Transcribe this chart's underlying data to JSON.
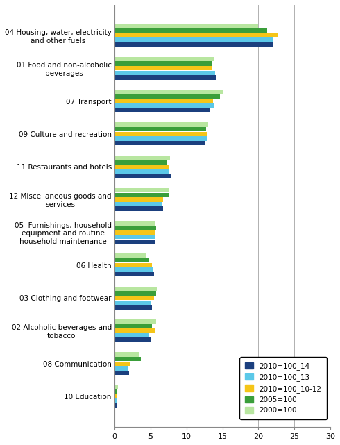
{
  "categories": [
    "04 Housing, water, electricity\nand other fuels",
    "01 Food and non-alcoholic\nbeverages",
    "07 Transport",
    "09 Culture and recreation",
    "11 Restaurants and hotels",
    "12 Miscellaneous goods and\nservices",
    "05  Furnishings, household\nequipment and routine\nhousehold maintenance",
    "06 Health",
    "03 Clothing and footwear",
    "02 Alcoholic beverages and\ntobacco",
    "08 Communication",
    "10 Education"
  ],
  "series": {
    "2010=100_14": [
      22.0,
      14.2,
      13.3,
      12.5,
      7.8,
      6.8,
      5.7,
      5.5,
      5.2,
      5.0,
      2.0,
      0.3
    ],
    "2010=100_13": [
      22.0,
      14.0,
      13.8,
      12.8,
      7.6,
      6.6,
      5.6,
      5.3,
      5.1,
      4.8,
      1.8,
      0.3
    ],
    "2010=100_10-12": [
      22.8,
      13.6,
      13.7,
      12.8,
      7.5,
      6.8,
      5.6,
      5.2,
      5.5,
      5.7,
      2.1,
      0.3
    ],
    "2005=100": [
      21.2,
      13.5,
      14.7,
      12.7,
      7.3,
      7.5,
      5.8,
      4.8,
      5.8,
      5.2,
      3.7,
      0.4
    ],
    "2000=100": [
      20.0,
      13.9,
      15.0,
      13.0,
      7.7,
      7.6,
      5.7,
      4.4,
      5.9,
      5.8,
      3.5,
      0.5
    ]
  },
  "colors": {
    "2010=100_14": "#1b3f7e",
    "2010=100_13": "#5bc8e8",
    "2010=100_10-12": "#f5c518",
    "2005=100": "#3a9e3a",
    "2000=100": "#b8e6a0"
  },
  "legend_labels": [
    "2010=100_14",
    "2010=100_13",
    "2010=100_10-12",
    "2005=100",
    "2000=100"
  ],
  "xlim": [
    0,
    30
  ],
  "xticks": [
    0,
    5,
    10,
    15,
    20,
    25,
    30
  ],
  "bar_height": 0.14
}
